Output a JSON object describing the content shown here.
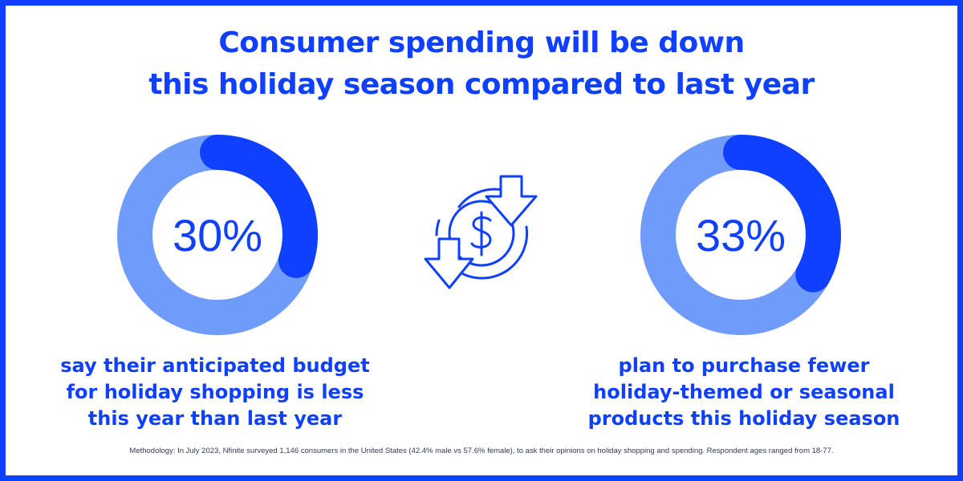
{
  "title": {
    "line1": "Consumer spending will be down",
    "line2": "this holiday season compared to last year"
  },
  "icon": "dollar-circle-down-arrows-icon",
  "colors": {
    "accent": "#1040ff",
    "light": "#6f9cfa",
    "border": "#1040ff"
  },
  "chart_data": [
    {
      "type": "pie",
      "values": [
        30,
        70
      ],
      "label": "30%",
      "caption_lines": [
        "say their anticipated budget",
        "for holiday shopping is less",
        "this year than last year"
      ]
    },
    {
      "type": "pie",
      "values": [
        33,
        67
      ],
      "label": "33%",
      "caption_lines": [
        "plan to purchase fewer",
        "holiday-themed or seasonal",
        "products this holiday season"
      ]
    }
  ],
  "methodology": "Methodology: In July 2023, Nfinite surveyed 1,146 consumers in the United States (42.4% male vs 57.6% female), to ask their opinions on holiday shopping and spending. Respondent ages ranged from 18-77."
}
